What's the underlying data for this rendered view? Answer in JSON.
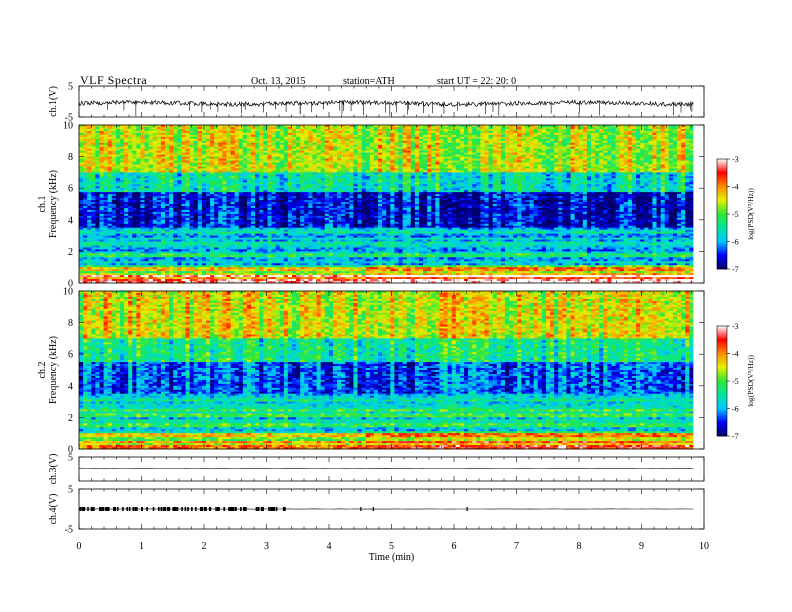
{
  "header": {
    "title": "VLF  Spectra",
    "date": "Oct. 13, 2015",
    "station": "station=ATH",
    "start": "start  UT  =    22: 20: 0"
  },
  "chart_data": [
    {
      "type": "line",
      "panel": "ch1-waveform",
      "ylabel": "ch.1(V)",
      "ylim": [
        -5,
        5
      ],
      "yticks": [
        "5",
        "-5"
      ],
      "xlim": [
        0,
        10
      ],
      "series": [
        {
          "values_summary": "noisy waveform centred near 0 V with sparse negative spikes"
        }
      ]
    },
    {
      "type": "heatmap",
      "panel": "ch1-spectrogram",
      "ylabel": "ch.1\nFrequency  (kHz)",
      "ylim": [
        0,
        10
      ],
      "yticks": [
        "0",
        "2",
        "4",
        "6",
        "8",
        "10"
      ],
      "xlim": [
        0,
        10
      ],
      "data_end_min": 9.83,
      "colorbar": {
        "label": "log(PSD(V²/Hz))",
        "range": [
          -7,
          -3
        ],
        "ticks": [
          "-3",
          "-4",
          "-5",
          "-6",
          "-7"
        ]
      },
      "bands_khz": [
        {
          "from": 0,
          "to": 0.5,
          "log_psd": -3.6
        },
        {
          "from": 0.5,
          "to": 1.0,
          "log_psd": -4.6
        },
        {
          "from": 1.0,
          "to": 3.5,
          "log_psd": -5.7
        },
        {
          "from": 3.5,
          "to": 5.8,
          "log_psd": -6.6
        },
        {
          "from": 5.8,
          "to": 7.0,
          "log_psd": -5.6
        },
        {
          "from": 7.0,
          "to": 10.0,
          "log_psd": -4.6
        }
      ]
    },
    {
      "type": "heatmap",
      "panel": "ch2-spectrogram",
      "ylabel": "ch.2\nFrequency  (kHz)",
      "ylim": [
        0,
        10
      ],
      "yticks": [
        "0",
        "2",
        "4",
        "6",
        "8",
        "10"
      ],
      "xlim": [
        0,
        10
      ],
      "data_end_min": 9.83,
      "colorbar": {
        "label": "log(PSD(V²/Hz))",
        "range": [
          -7,
          -3
        ],
        "ticks": [
          "-3",
          "-4",
          "-5",
          "-6",
          "-7"
        ]
      },
      "bands_khz": [
        {
          "from": 0,
          "to": 0.5,
          "log_psd": -4.2
        },
        {
          "from": 0.5,
          "to": 1.0,
          "log_psd": -4.8
        },
        {
          "from": 1.0,
          "to": 3.5,
          "log_psd": -5.5
        },
        {
          "from": 3.5,
          "to": 5.5,
          "log_psd": -6.3
        },
        {
          "from": 5.5,
          "to": 7.0,
          "log_psd": -5.4
        },
        {
          "from": 7.0,
          "to": 10.0,
          "log_psd": -4.5
        }
      ]
    },
    {
      "type": "line",
      "panel": "ch3-waveform",
      "ylabel": "ch.3(V)",
      "ylim": [
        -5,
        5
      ],
      "yticks": [
        "5"
      ],
      "xlim": [
        0,
        10
      ],
      "series": [
        {
          "values_summary": "flat near 0 V"
        }
      ]
    },
    {
      "type": "line",
      "panel": "ch4-waveform",
      "ylabel": "ch.4(V)",
      "ylim": [
        -5,
        5
      ],
      "yticks": [
        "5",
        "-5"
      ],
      "xlim": [
        0,
        10
      ],
      "series": [
        {
          "values_summary": "flat near 0 V with dense pulses between 0 and 3.3 min"
        }
      ]
    }
  ],
  "x_axis": {
    "label": "Time  (min)",
    "ticks": [
      "0",
      "1",
      "2",
      "3",
      "4",
      "5",
      "6",
      "7",
      "8",
      "9",
      "10"
    ]
  },
  "colormap": [
    "#000066",
    "#0000ff",
    "#00c8ff",
    "#00e6a0",
    "#32e632",
    "#e6f000",
    "#ff8c00",
    "#ff0000",
    "#ffffff"
  ]
}
